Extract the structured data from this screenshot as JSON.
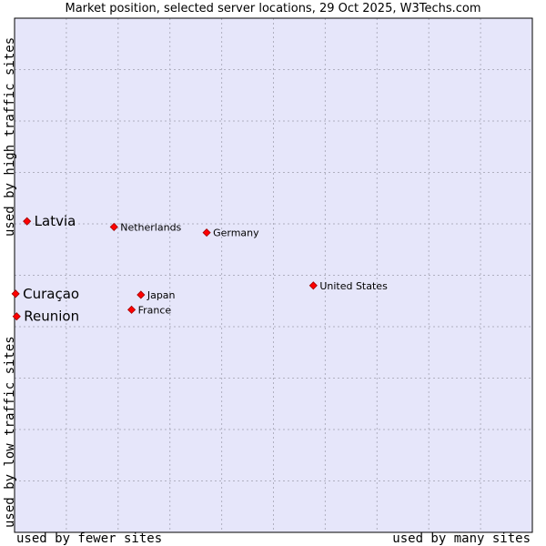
{
  "chart_data": {
    "type": "scatter",
    "title": "Market position, selected server locations, 29 Oct 2025, W3Techs.com",
    "xlabel_left": "used by fewer sites",
    "xlabel_right": "used by many sites",
    "ylabel_top": "used by high traffic sites",
    "ylabel_bottom": "used by low traffic sites",
    "xlim": [
      0,
      100
    ],
    "ylim": [
      0,
      100
    ],
    "grid": true,
    "points": [
      {
        "label": "Latvia",
        "x": 2.4,
        "y": 60.5,
        "highlight": true
      },
      {
        "label": "Curaçao",
        "x": 0.2,
        "y": 46.4,
        "highlight": true
      },
      {
        "label": "Reunion",
        "x": 0.4,
        "y": 42.0,
        "highlight": true
      },
      {
        "label": "Netherlands",
        "x": 19.2,
        "y": 59.4,
        "highlight": false
      },
      {
        "label": "Germany",
        "x": 37.1,
        "y": 58.3,
        "highlight": false
      },
      {
        "label": "Japan",
        "x": 24.4,
        "y": 46.2,
        "highlight": false
      },
      {
        "label": "France",
        "x": 22.6,
        "y": 43.3,
        "highlight": false
      },
      {
        "label": "United States",
        "x": 57.7,
        "y": 48.0,
        "highlight": false
      }
    ]
  },
  "colors": {
    "plot_background": "#E6E6FA",
    "grid": "#B0B0C0",
    "axis": "#000000",
    "marker": "#FF0000",
    "marker_edge": "#A00000"
  }
}
